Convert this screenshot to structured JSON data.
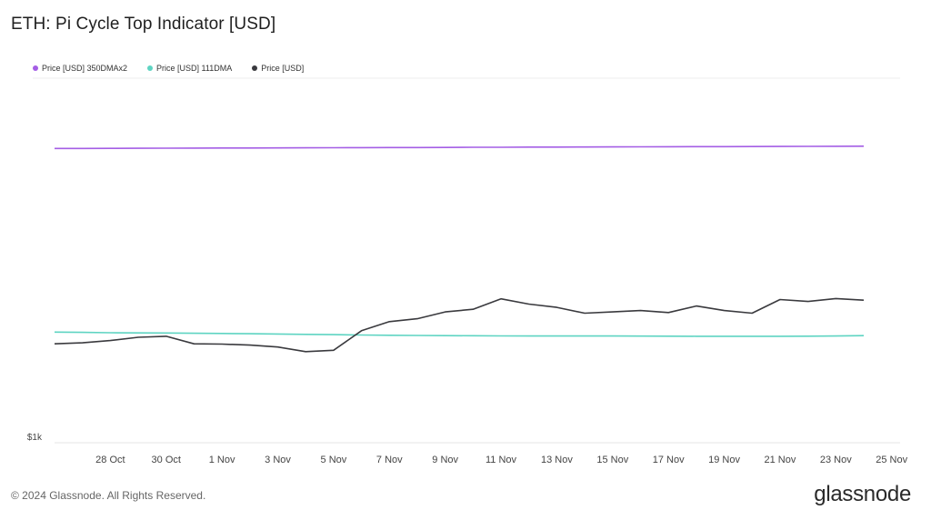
{
  "title": "ETH: Pi Cycle Top Indicator [USD]",
  "footer": {
    "copyright": "© 2024 Glassnode. All Rights Reserved.",
    "brand": "glassnode"
  },
  "chart_data": {
    "type": "line",
    "title": "ETH: Pi Cycle Top Indicator [USD]",
    "x_ticks": [
      "28 Oct",
      "30 Oct",
      "1 Nov",
      "3 Nov",
      "5 Nov",
      "7 Nov",
      "9 Nov",
      "11 Nov",
      "13 Nov",
      "15 Nov",
      "17 Nov",
      "19 Nov",
      "21 Nov",
      "23 Nov",
      "25 Nov"
    ],
    "y_tick_label": "$1k",
    "grid": false,
    "legend_position": "top-left",
    "x": [
      "2024-10-26",
      "2024-10-27",
      "2024-10-28",
      "2024-10-29",
      "2024-10-30",
      "2024-10-31",
      "2024-11-01",
      "2024-11-02",
      "2024-11-03",
      "2024-11-04",
      "2024-11-05",
      "2024-11-06",
      "2024-11-07",
      "2024-11-08",
      "2024-11-09",
      "2024-11-10",
      "2024-11-11",
      "2024-11-12",
      "2024-11-13",
      "2024-11-14",
      "2024-11-15",
      "2024-11-16",
      "2024-11-17",
      "2024-11-18",
      "2024-11-19",
      "2024-11-20",
      "2024-11-21",
      "2024-11-22",
      "2024-11-23",
      "2024-11-24"
    ],
    "ylim": [
      1000,
      6600
    ],
    "series": [
      {
        "name": "Price [USD] 350DMAx2",
        "color": "#a45ee5",
        "values": [
          5520,
          5521,
          5522,
          5523,
          5524,
          5526,
          5527,
          5528,
          5529,
          5530,
          5531,
          5533,
          5534,
          5535,
          5536,
          5538,
          5539,
          5541,
          5542,
          5543,
          5544,
          5546,
          5547,
          5548,
          5549,
          5550,
          5551,
          5553,
          5554,
          5556
        ]
      },
      {
        "name": "Price [USD] 111DMA",
        "color": "#5ed4c2",
        "values": [
          2700,
          2695,
          2690,
          2687,
          2685,
          2682,
          2678,
          2675,
          2670,
          2665,
          2660,
          2655,
          2650,
          2648,
          2645,
          2643,
          2641,
          2640,
          2640,
          2640,
          2639,
          2638,
          2637,
          2636,
          2635,
          2635,
          2636,
          2637,
          2640,
          2645
        ]
      },
      {
        "name": "Price [USD]",
        "color": "#3a3a3e",
        "values": [
          2520,
          2535,
          2570,
          2620,
          2635,
          2520,
          2515,
          2500,
          2470,
          2400,
          2420,
          2720,
          2860,
          2905,
          3010,
          3050,
          3210,
          3130,
          3080,
          2990,
          3010,
          3030,
          3000,
          3100,
          3030,
          2990,
          3200,
          3170,
          3215,
          3190
        ]
      }
    ]
  }
}
